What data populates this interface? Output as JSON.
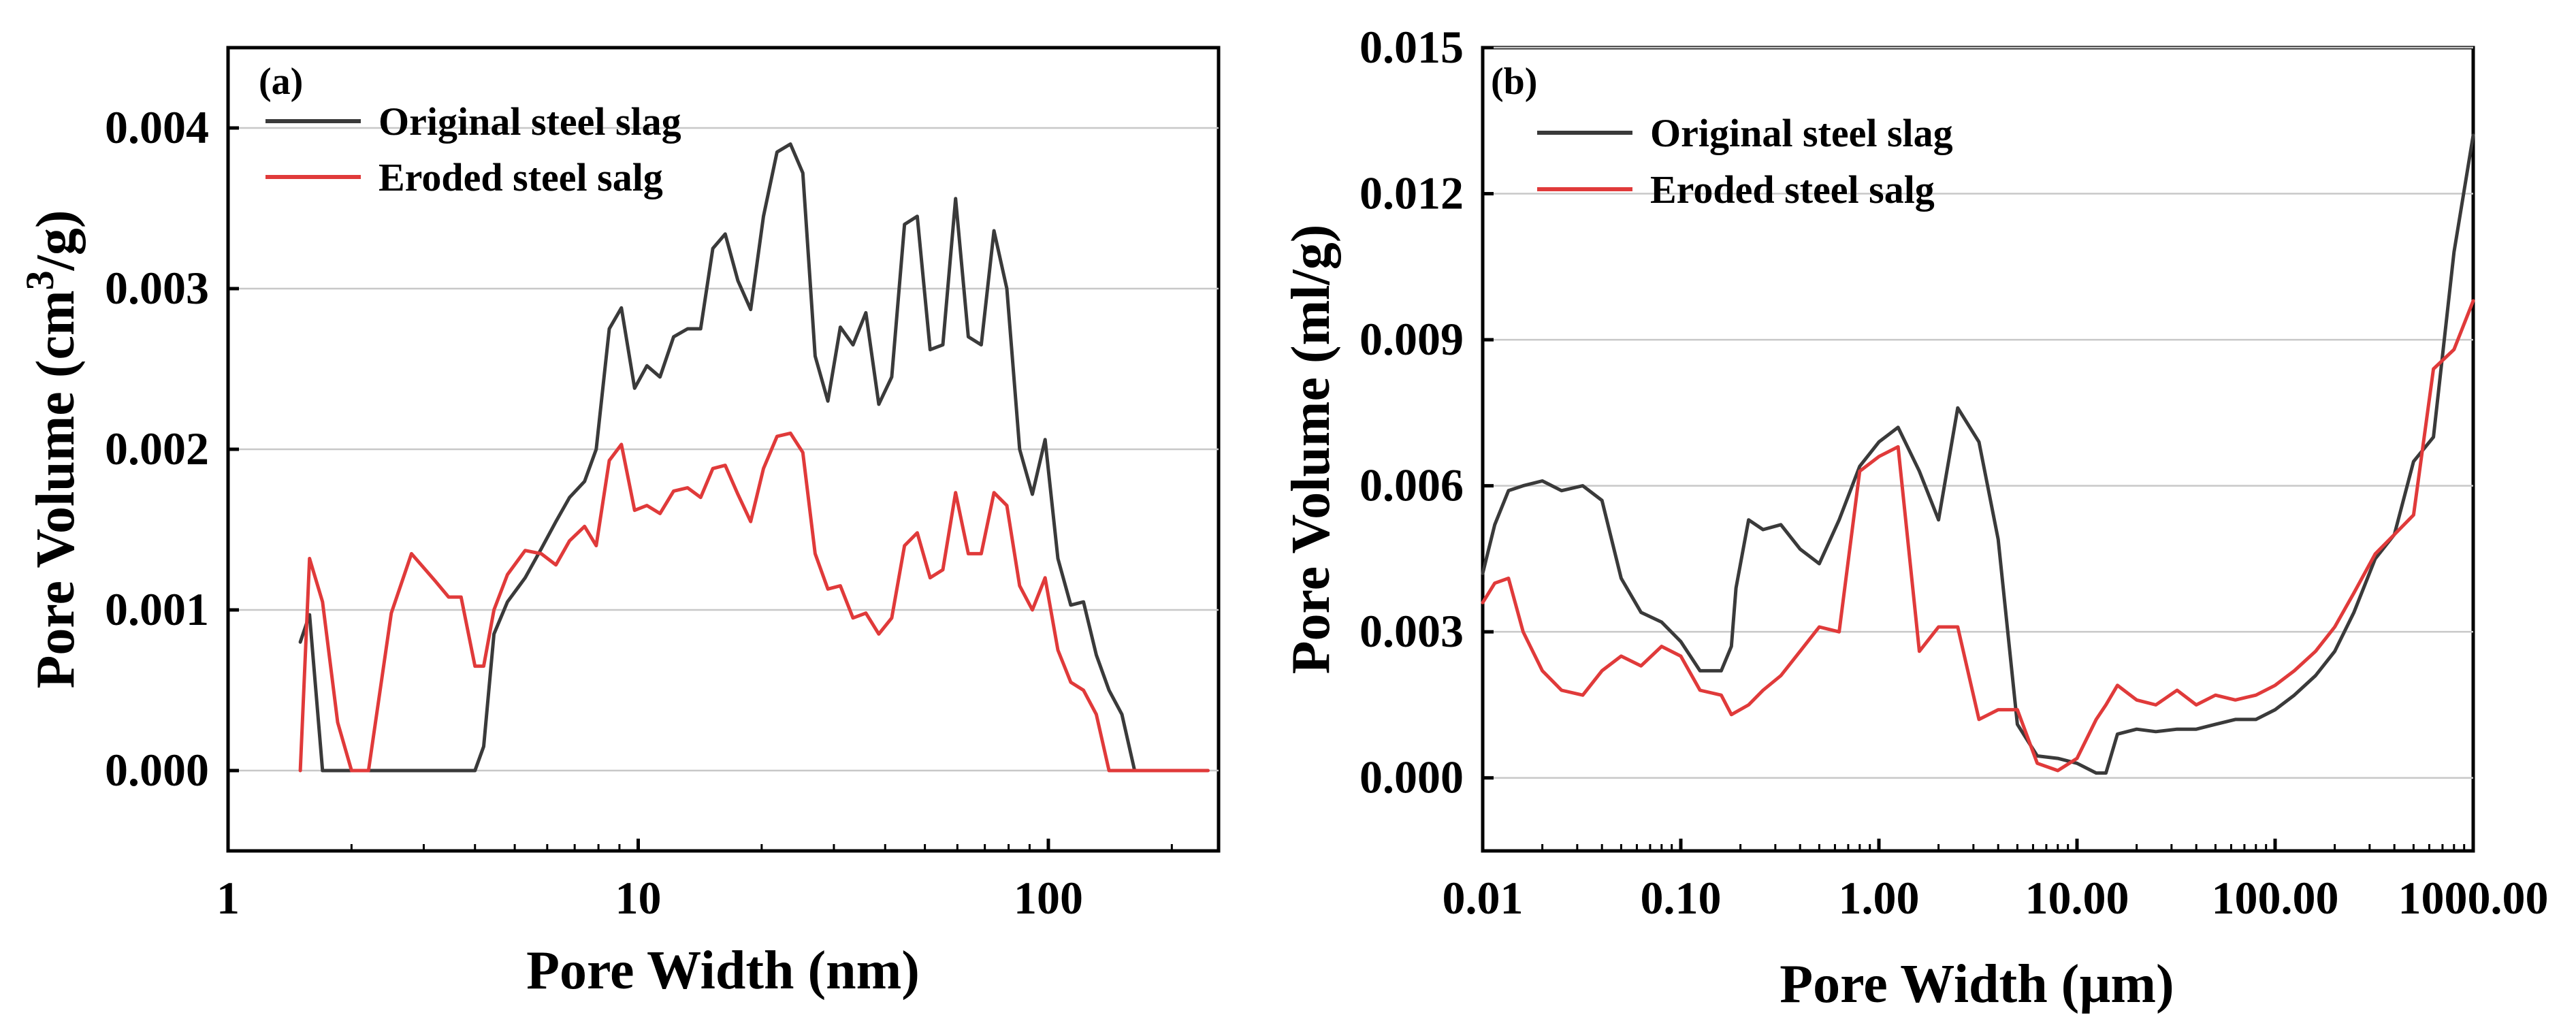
{
  "chart_data": [
    {
      "type": "line",
      "panel_label": "(a)",
      "xlabel": "Pore Width (nm)",
      "ylabel_main": "Pore Volume (cm",
      "ylabel_sup": "3",
      "ylabel_tail": "/g)",
      "x_scale": "log",
      "xlim": [
        1,
        260
      ],
      "ylim": [
        -0.0005,
        0.0045
      ],
      "x_ticks": [
        1,
        10,
        100
      ],
      "x_tick_labels": [
        "1",
        "10",
        "100"
      ],
      "y_ticks": [
        0,
        0.001,
        0.002,
        0.003,
        0.004
      ],
      "y_tick_labels": [
        "0.000",
        "0.001",
        "0.002",
        "0.003",
        "0.004"
      ],
      "grid": "horizontal",
      "legend_position": "top-left",
      "series": [
        {
          "name": "Original steel slag",
          "color": "#3a3a3a",
          "x": [
            1.5,
            1.58,
            1.7,
            1.85,
            2.0,
            2.2,
            2.5,
            2.8,
            3.2,
            3.6,
            4.0,
            4.2,
            4.45,
            4.8,
            5.3,
            5.8,
            6.3,
            6.8,
            7.4,
            7.9,
            8.5,
            9.1,
            9.8,
            10.5,
            11.3,
            12.2,
            13.2,
            14.2,
            15.2,
            16.3,
            17.5,
            18.8,
            20.2,
            21.8,
            23.5,
            25.2,
            27.0,
            29.0,
            31.1,
            33.4,
            35.9,
            38.6,
            41.5,
            44.6,
            47.9,
            51.5,
            55.3,
            59.4,
            63.8,
            68.6,
            73.7,
            79.2,
            85.1,
            91.4,
            98.2,
            105.5,
            113.4,
            121.8,
            130.9,
            140.6,
            151.1,
            162.3,
            174.4,
            187.4,
            201.3
          ],
          "y": [
            0.0008,
            0.00097,
            0.0,
            0.0,
            0.0,
            0.0,
            0.0,
            0.0,
            0.0,
            0.0,
            0.0,
            0.00015,
            0.00085,
            0.00105,
            0.0012,
            0.00138,
            0.00155,
            0.0017,
            0.0018,
            0.002,
            0.00275,
            0.00288,
            0.00238,
            0.00252,
            0.00245,
            0.0027,
            0.00275,
            0.00275,
            0.00325,
            0.00334,
            0.00305,
            0.00287,
            0.00345,
            0.00385,
            0.0039,
            0.00372,
            0.00258,
            0.0023,
            0.00276,
            0.00265,
            0.00285,
            0.00228,
            0.00245,
            0.0034,
            0.00345,
            0.00262,
            0.00265,
            0.00356,
            0.0027,
            0.00265,
            0.00336,
            0.003,
            0.002,
            0.00172,
            0.00206,
            0.00132,
            0.00103,
            0.00105,
            0.00072,
            0.0005,
            0.00035,
            0.0,
            0.0,
            0.0,
            0.0
          ]
        },
        {
          "name": "Eroded steel salg",
          "color": "#e03a3a",
          "x": [
            1.5,
            1.58,
            1.7,
            1.85,
            2.0,
            2.2,
            2.5,
            2.8,
            3.2,
            3.45,
            3.7,
            4.0,
            4.2,
            4.45,
            4.8,
            5.3,
            5.8,
            6.3,
            6.8,
            7.4,
            7.9,
            8.5,
            9.1,
            9.8,
            10.5,
            11.3,
            12.2,
            13.2,
            14.2,
            15.2,
            16.3,
            17.5,
            18.8,
            20.2,
            21.8,
            23.5,
            25.2,
            27.0,
            29.0,
            31.1,
            33.4,
            35.9,
            38.6,
            41.5,
            44.6,
            47.9,
            51.5,
            55.3,
            59.4,
            63.8,
            68.6,
            73.7,
            79.2,
            85.1,
            91.4,
            98.2,
            105.5,
            113.4,
            121.8,
            130.9,
            140.6,
            151.1,
            162.3,
            174.4,
            187.4,
            201.3,
            220.0,
            245.0
          ],
          "y": [
            0.0,
            0.00132,
            0.00105,
            0.0003,
            0.0,
            0.0,
            0.00098,
            0.00135,
            0.00118,
            0.00108,
            0.00108,
            0.00065,
            0.00065,
            0.001,
            0.00122,
            0.00137,
            0.00135,
            0.00128,
            0.00143,
            0.00152,
            0.0014,
            0.00193,
            0.00203,
            0.00162,
            0.00165,
            0.0016,
            0.00174,
            0.00176,
            0.0017,
            0.00188,
            0.0019,
            0.00172,
            0.00155,
            0.00188,
            0.00208,
            0.0021,
            0.00198,
            0.00135,
            0.00113,
            0.00115,
            0.00095,
            0.00098,
            0.00085,
            0.00095,
            0.0014,
            0.00148,
            0.0012,
            0.00125,
            0.00173,
            0.00135,
            0.00135,
            0.00173,
            0.00165,
            0.00115,
            0.001,
            0.0012,
            0.00075,
            0.00055,
            0.0005,
            0.00035,
            0.0,
            0.0,
            0.0,
            0.0,
            0.0,
            0.0,
            0.0,
            0.0
          ]
        }
      ]
    },
    {
      "type": "line",
      "panel_label": "(b)",
      "xlabel": "Pore Width (µm)",
      "ylabel": "Pore Volume (ml/g)",
      "x_scale": "log",
      "xlim": [
        0.01,
        1000
      ],
      "ylim": [
        -0.0015,
        0.015
      ],
      "x_ticks": [
        0.01,
        0.1,
        1,
        10,
        100,
        1000
      ],
      "x_tick_labels": [
        "0.01",
        "0.10",
        "1.00",
        "10.00",
        "100.00",
        "1000.00"
      ],
      "y_ticks": [
        0,
        0.003,
        0.006,
        0.009,
        0.012,
        0.015
      ],
      "y_tick_labels": [
        "0.000",
        "0.003",
        "0.006",
        "0.009",
        "0.012",
        "0.015"
      ],
      "grid": "horizontal",
      "legend_position": "top-left",
      "series": [
        {
          "name": "Original steel slag",
          "color": "#3a3a3a",
          "x": [
            0.01,
            0.0115,
            0.0135,
            0.016,
            0.02,
            0.025,
            0.032,
            0.04,
            0.05,
            0.063,
            0.08,
            0.1,
            0.125,
            0.16,
            0.18,
            0.19,
            0.22,
            0.26,
            0.32,
            0.4,
            0.5,
            0.63,
            0.8,
            1.0,
            1.25,
            1.6,
            2.0,
            2.5,
            3.2,
            4.0,
            5.0,
            6.3,
            8.0,
            10.0,
            12.5,
            14.0,
            16.0,
            20.0,
            25.0,
            32.0,
            40.0,
            50.0,
            63.0,
            80.0,
            100.0,
            125.0,
            160.0,
            200.0,
            250.0,
            320.0,
            400.0,
            500.0,
            630.0,
            800.0,
            1000.0
          ],
          "y": [
            0.0042,
            0.0052,
            0.0059,
            0.006,
            0.0061,
            0.0059,
            0.006,
            0.0057,
            0.0041,
            0.0034,
            0.0032,
            0.0028,
            0.0022,
            0.0022,
            0.0027,
            0.0039,
            0.0053,
            0.0051,
            0.0052,
            0.0047,
            0.0044,
            0.0053,
            0.0064,
            0.0069,
            0.0072,
            0.0063,
            0.0053,
            0.0076,
            0.0069,
            0.0049,
            0.0011,
            0.00045,
            0.0004,
            0.0003,
            0.0001,
            0.0001,
            0.0009,
            0.001,
            0.00095,
            0.001,
            0.001,
            0.0011,
            0.0012,
            0.0012,
            0.0014,
            0.0017,
            0.0021,
            0.0026,
            0.0034,
            0.0045,
            0.005,
            0.0065,
            0.007,
            0.0108,
            0.0132
          ]
        },
        {
          "name": "Eroded steel salg",
          "color": "#e03a3a",
          "x": [
            0.01,
            0.0115,
            0.0135,
            0.016,
            0.02,
            0.025,
            0.032,
            0.04,
            0.05,
            0.063,
            0.08,
            0.1,
            0.125,
            0.16,
            0.18,
            0.22,
            0.26,
            0.32,
            0.4,
            0.5,
            0.63,
            0.8,
            1.0,
            1.25,
            1.6,
            2.0,
            2.5,
            3.2,
            4.0,
            5.0,
            6.3,
            8.0,
            10.0,
            12.5,
            14.0,
            16.0,
            20.0,
            25.0,
            32.0,
            40.0,
            50.0,
            63.0,
            80.0,
            100.0,
            125.0,
            160.0,
            200.0,
            250.0,
            320.0,
            400.0,
            500.0,
            630.0,
            800.0,
            1000.0
          ],
          "y": [
            0.0036,
            0.004,
            0.0041,
            0.003,
            0.0022,
            0.0018,
            0.0017,
            0.0022,
            0.0025,
            0.0023,
            0.0027,
            0.0025,
            0.0018,
            0.0017,
            0.0013,
            0.0015,
            0.0018,
            0.0021,
            0.0026,
            0.0031,
            0.003,
            0.0063,
            0.0066,
            0.0068,
            0.0026,
            0.0031,
            0.0031,
            0.0012,
            0.0014,
            0.0014,
            0.0003,
            0.00015,
            0.0004,
            0.0012,
            0.0015,
            0.0019,
            0.0016,
            0.0015,
            0.0018,
            0.0015,
            0.0017,
            0.0016,
            0.0017,
            0.0019,
            0.0022,
            0.0026,
            0.0031,
            0.0038,
            0.0046,
            0.005,
            0.0054,
            0.0084,
            0.0088,
            0.0098
          ]
        }
      ]
    }
  ]
}
